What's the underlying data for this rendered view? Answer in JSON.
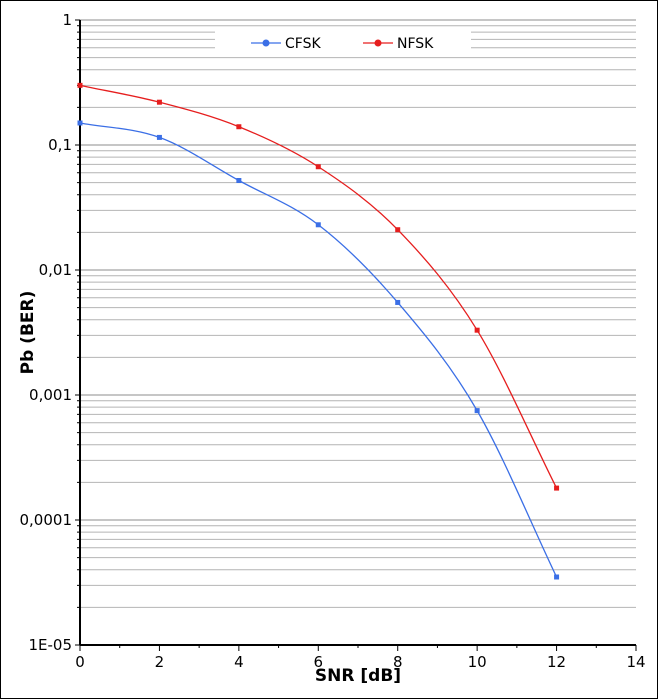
{
  "chart_data": {
    "type": "line",
    "xlabel": "SNR [dB]",
    "ylabel": "Pb (BER)",
    "x_scale": "linear",
    "y_scale": "log",
    "xlim": [
      0,
      14
    ],
    "ylim": [
      1e-05,
      1
    ],
    "x_ticks": [
      "0",
      "2",
      "4",
      "6",
      "8",
      "10",
      "12",
      "14"
    ],
    "y_ticks": [
      "1",
      "0,1",
      "0,01",
      "0,001",
      "0,0001",
      "1E-05"
    ],
    "grid": "horizontal, major and minor (log decades)",
    "legend_position": "top",
    "x": [
      0,
      2,
      4,
      6,
      8,
      10,
      12
    ],
    "series": [
      {
        "name": "CFSK",
        "color": "#3b6fe6",
        "values": [
          0.15,
          0.115,
          0.052,
          0.023,
          0.0055,
          0.00075,
          3.5e-05
        ]
      },
      {
        "name": "NFSK",
        "color": "#e61e1e",
        "values": [
          0.3,
          0.22,
          0.14,
          0.067,
          0.021,
          0.0033,
          0.00018
        ]
      }
    ]
  }
}
